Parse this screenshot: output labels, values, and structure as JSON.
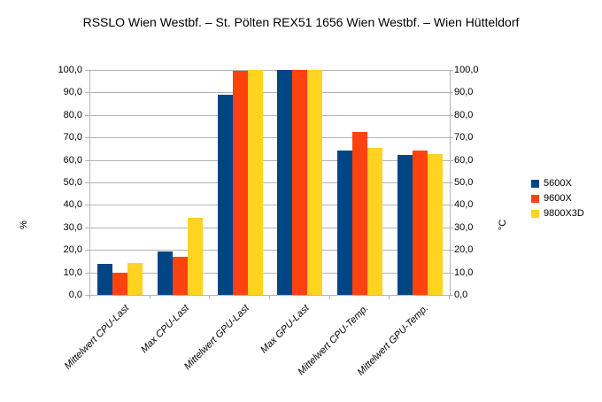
{
  "title": "RSSLO Wien Westbf. – St. Pölten REX51 1656 Wien Westbf. – Wien Hütteldorf",
  "chart_data": {
    "type": "bar",
    "title": "RSSLO Wien Westbf. – St. Pölten REX51 1656 Wien Westbf. – Wien Hütteldorf",
    "categories": [
      "Mittelwert CPU-Last",
      "Max CPU-Last",
      "Mittelwert GPU-Last",
      "Max GPU-Last",
      "Mittelwert CPU-Temp.",
      "Mittelwert GPU-Temp."
    ],
    "series": [
      {
        "name": "5600X",
        "color": "#004586",
        "values": [
          13.9,
          19.4,
          88.9,
          100.0,
          64.0,
          62.1
        ]
      },
      {
        "name": "9600X",
        "color": "#ff420e",
        "values": [
          9.7,
          17.1,
          99.6,
          100.0,
          72.5,
          64.1
        ]
      },
      {
        "name": "9800X3D",
        "color": "#ffd320",
        "values": [
          14.3,
          34.4,
          99.9,
          100.0,
          65.5,
          62.5
        ]
      }
    ],
    "ylabel_left": "%",
    "ylabel_right": "°C",
    "ylim": [
      0,
      100
    ],
    "ytick_step": 10,
    "ytick_labels": [
      "0,0",
      "10,0",
      "20,0",
      "30,0",
      "40,0",
      "50,0",
      "60,0",
      "70,0",
      "80,0",
      "90,0",
      "100,0"
    ],
    "grid": true,
    "legend_position": "right",
    "legend_entries": [
      "5600X",
      "9600X",
      "9800X3D"
    ]
  },
  "colors": {
    "background": "#ffffff",
    "grid": "#b3b3b3",
    "axis": "#b3b3b3",
    "text": "#000000"
  }
}
